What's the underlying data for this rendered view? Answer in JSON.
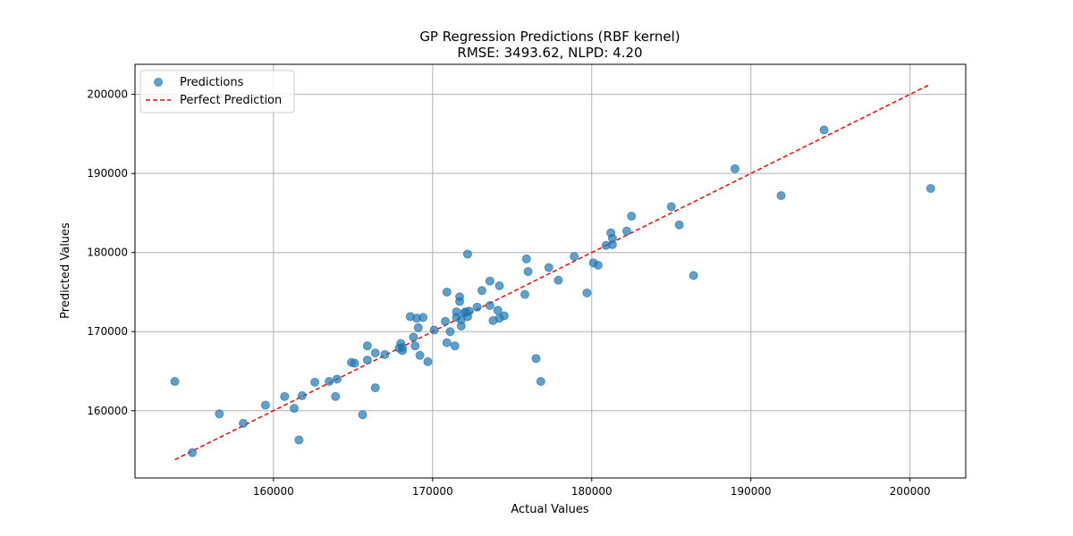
{
  "chart_data": {
    "type": "scatter",
    "title": "GP Regression Predictions (RBF kernel)",
    "subtitle": "RMSE: 3493.62, NLPD: 4.20",
    "xlabel": "Actual Values",
    "ylabel": "Predicted Values",
    "xlim": [
      151300,
      203500
    ],
    "ylim": [
      151500,
      203800
    ],
    "xticks": [
      160000,
      170000,
      180000,
      190000,
      200000
    ],
    "xtick_labels": [
      "160000",
      "170000",
      "180000",
      "190000",
      "200000"
    ],
    "yticks": [
      160000,
      170000,
      180000,
      190000,
      200000
    ],
    "ytick_labels": [
      "160000",
      "170000",
      "180000",
      "190000",
      "200000"
    ],
    "grid": true,
    "legend": {
      "position": "top-left",
      "entries": [
        "Predictions",
        "Perfect Prediction"
      ]
    },
    "colors": {
      "points": "#1f77b4",
      "reference_line": "#ff0000"
    },
    "reference_line": {
      "name": "Perfect Prediction",
      "x": [
        153800,
        201300
      ],
      "y": [
        153800,
        201300
      ],
      "style": "dashed"
    },
    "series": [
      {
        "name": "Predictions",
        "x": [
          153800,
          154900,
          156600,
          158100,
          159500,
          160700,
          161300,
          161600,
          161800,
          162600,
          163500,
          163900,
          164000,
          164900,
          165100,
          165600,
          165900,
          165900,
          166400,
          166400,
          167000,
          167900,
          168000,
          168100,
          168100,
          168600,
          168800,
          168900,
          169000,
          169100,
          169200,
          169400,
          169700,
          170100,
          170800,
          170900,
          170900,
          171100,
          171400,
          171500,
          171500,
          171700,
          171700,
          171800,
          171800,
          172000,
          172100,
          172200,
          172200,
          172300,
          172800,
          173100,
          173600,
          173600,
          173800,
          174100,
          174200,
          174200,
          174500,
          175800,
          175900,
          176000,
          176500,
          176800,
          177300,
          177900,
          178900,
          179700,
          180100,
          180400,
          180900,
          181200,
          181300,
          181300,
          182200,
          182500,
          185000,
          185500,
          186400,
          189000,
          191900,
          194600,
          201300
        ],
        "y": [
          163700,
          154700,
          159600,
          158400,
          160700,
          161800,
          160300,
          156300,
          161900,
          163600,
          163700,
          161800,
          164000,
          166100,
          166000,
          159500,
          166400,
          168200,
          167300,
          162900,
          167100,
          167900,
          168500,
          167600,
          168000,
          171900,
          169300,
          168200,
          171700,
          170500,
          167000,
          171800,
          166200,
          170200,
          171300,
          168600,
          175000,
          170000,
          168200,
          172500,
          171800,
          174400,
          173800,
          171500,
          170700,
          172400,
          172500,
          171900,
          179800,
          172600,
          173100,
          175200,
          176400,
          173300,
          171400,
          172700,
          171700,
          175800,
          172000,
          174700,
          179200,
          177600,
          166600,
          163700,
          178100,
          176500,
          179500,
          174900,
          178700,
          178400,
          180900,
          182500,
          181800,
          181000,
          182700,
          184600,
          185800,
          183500,
          177100,
          190600,
          187200,
          195500,
          188100
        ]
      }
    ]
  }
}
